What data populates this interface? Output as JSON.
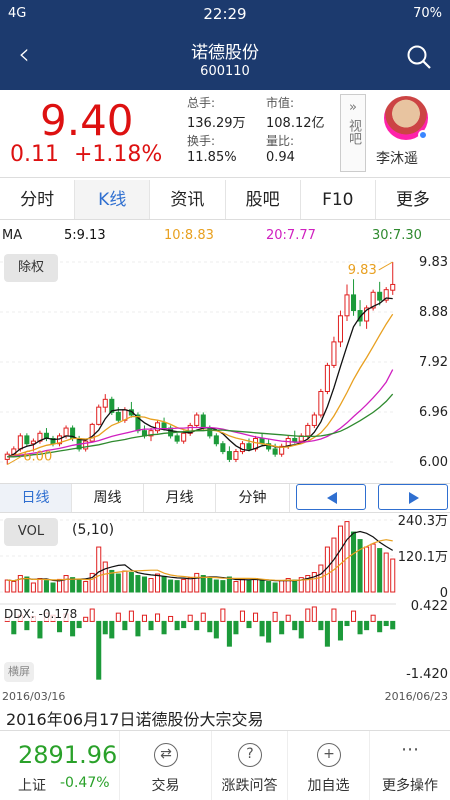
{
  "status": {
    "left": "4G",
    "time": "22:29",
    "right": "70%"
  },
  "nav": {
    "title": "诺德股份",
    "code": "600110"
  },
  "quote": {
    "price": "9.40",
    "change_abs": "0.11",
    "change_pct": "+1.18%",
    "stats": [
      {
        "label": "总手:",
        "value": "136.29万"
      },
      {
        "label": "市值:",
        "value": "108.12亿"
      },
      {
        "label": "换手:",
        "value": "11.85%"
      },
      {
        "label": "量比:",
        "value": "0.94"
      }
    ],
    "view_label": "视吧",
    "user": "李沐遥"
  },
  "tabs": [
    "分时",
    "K线",
    "资讯",
    "股吧",
    "F10",
    "更多"
  ],
  "ma": {
    "label": "MA",
    "ma5": "5:9.13",
    "ma10": "10:8.83",
    "ma20": "20:7.77",
    "ma30": "30:7.30"
  },
  "chart_controls": {
    "fuquan": "除权",
    "vol": "VOL",
    "vol_param": "(5,10)",
    "ddx": "DDX: -0.178",
    "hengping": "横屏"
  },
  "periods": [
    "日线",
    "周线",
    "月线",
    "分钟"
  ],
  "colors": {
    "up": "#e02020",
    "down": "#1c9a3a",
    "ma5": "#111111",
    "ma10": "#e8a020",
    "ma20": "#d020c0",
    "ma30": "#2f8a2f",
    "nav": "#1c3a6e"
  },
  "chart_data": [
    {
      "type": "candlestick",
      "title": "",
      "ylim": [
        6.0,
        9.83
      ],
      "yticks": [
        "9.83",
        "8.88",
        "7.92",
        "6.96",
        "6.00"
      ],
      "annotations": {
        "high": "9.83",
        "low": "6.00"
      },
      "x_start": "2016/03/16",
      "x_end": "2016/06/23",
      "candles": [
        [
          6.05,
          6.2,
          5.95,
          6.15
        ],
        [
          6.15,
          6.3,
          6.1,
          6.25
        ],
        [
          6.25,
          6.55,
          6.2,
          6.5
        ],
        [
          6.5,
          6.55,
          6.3,
          6.35
        ],
        [
          6.35,
          6.45,
          6.2,
          6.4
        ],
        [
          6.4,
          6.6,
          6.35,
          6.55
        ],
        [
          6.55,
          6.65,
          6.4,
          6.45
        ],
        [
          6.45,
          6.5,
          6.3,
          6.35
        ],
        [
          6.35,
          6.55,
          6.3,
          6.5
        ],
        [
          6.5,
          6.7,
          6.45,
          6.65
        ],
        [
          6.65,
          6.7,
          6.4,
          6.45
        ],
        [
          6.45,
          6.5,
          6.2,
          6.25
        ],
        [
          6.25,
          6.45,
          6.2,
          6.4
        ],
        [
          6.4,
          6.75,
          6.38,
          6.72
        ],
        [
          6.72,
          7.1,
          6.7,
          7.05
        ],
        [
          7.05,
          7.3,
          6.95,
          7.2
        ],
        [
          7.2,
          7.25,
          6.9,
          6.95
        ],
        [
          6.95,
          7.05,
          6.75,
          6.8
        ],
        [
          6.8,
          7.05,
          6.75,
          7.0
        ],
        [
          7.0,
          7.15,
          6.85,
          6.9
        ],
        [
          6.9,
          6.95,
          6.55,
          6.6
        ],
        [
          6.6,
          6.7,
          6.45,
          6.5
        ],
        [
          6.5,
          6.65,
          6.4,
          6.6
        ],
        [
          6.6,
          6.8,
          6.55,
          6.75
        ],
        [
          6.75,
          6.85,
          6.6,
          6.65
        ],
        [
          6.65,
          6.7,
          6.45,
          6.5
        ],
        [
          6.5,
          6.55,
          6.35,
          6.4
        ],
        [
          6.4,
          6.6,
          6.35,
          6.55
        ],
        [
          6.55,
          6.75,
          6.5,
          6.7
        ],
        [
          6.7,
          6.95,
          6.65,
          6.9
        ],
        [
          6.9,
          6.95,
          6.6,
          6.65
        ],
        [
          6.65,
          6.7,
          6.45,
          6.5
        ],
        [
          6.5,
          6.55,
          6.3,
          6.35
        ],
        [
          6.35,
          6.4,
          6.15,
          6.2
        ],
        [
          6.2,
          6.3,
          6.0,
          6.05
        ],
        [
          6.05,
          6.25,
          6.0,
          6.2
        ],
        [
          6.2,
          6.4,
          6.15,
          6.35
        ],
        [
          6.35,
          6.45,
          6.2,
          6.25
        ],
        [
          6.25,
          6.5,
          6.2,
          6.45
        ],
        [
          6.45,
          6.55,
          6.3,
          6.35
        ],
        [
          6.35,
          6.45,
          6.2,
          6.25
        ],
        [
          6.25,
          6.35,
          6.1,
          6.15
        ],
        [
          6.15,
          6.35,
          6.1,
          6.3
        ],
        [
          6.3,
          6.5,
          6.25,
          6.45
        ],
        [
          6.45,
          6.6,
          6.35,
          6.4
        ],
        [
          6.4,
          6.55,
          6.35,
          6.5
        ],
        [
          6.5,
          6.75,
          6.45,
          6.7
        ],
        [
          6.7,
          6.95,
          6.65,
          6.9
        ],
        [
          6.9,
          7.4,
          6.85,
          7.35
        ],
        [
          7.35,
          7.9,
          7.3,
          7.85
        ],
        [
          7.85,
          8.4,
          7.8,
          8.3
        ],
        [
          8.3,
          8.9,
          8.2,
          8.8
        ],
        [
          8.8,
          9.4,
          8.7,
          9.2
        ],
        [
          9.2,
          9.5,
          8.8,
          8.9
        ],
        [
          8.9,
          9.1,
          8.6,
          8.7
        ],
        [
          8.7,
          9.0,
          8.55,
          8.95
        ],
        [
          8.95,
          9.3,
          8.9,
          9.25
        ],
        [
          9.25,
          9.45,
          9.0,
          9.1
        ],
        [
          9.1,
          9.35,
          9.05,
          9.3
        ],
        [
          9.29,
          9.83,
          9.2,
          9.4
        ]
      ],
      "ma5": [
        6.1,
        6.15,
        6.25,
        6.3,
        6.33,
        6.41,
        6.46,
        6.43,
        6.44,
        6.5,
        6.49,
        6.43,
        6.42,
        6.49,
        6.61,
        6.83,
        6.98,
        7.0,
        7.0,
        6.97,
        6.85,
        6.75,
        6.68,
        6.64,
        6.62,
        6.6,
        6.58,
        6.57,
        6.56,
        6.61,
        6.65,
        6.66,
        6.62,
        6.54,
        6.42,
        6.31,
        6.24,
        6.22,
        6.26,
        6.31,
        6.33,
        6.29,
        6.28,
        6.31,
        6.33,
        6.37,
        6.44,
        6.57,
        6.77,
        7.06,
        7.42,
        7.83,
        8.22,
        8.59,
        8.78,
        8.91,
        8.98,
        9.04,
        9.14,
        9.13
      ],
      "ma10": [
        6.1,
        6.12,
        6.16,
        6.2,
        6.23,
        6.28,
        6.32,
        6.34,
        6.37,
        6.41,
        6.45,
        6.45,
        6.44,
        6.46,
        6.51,
        6.61,
        6.7,
        6.75,
        6.81,
        6.87,
        6.87,
        6.86,
        6.82,
        6.8,
        6.77,
        6.72,
        6.66,
        6.62,
        6.59,
        6.6,
        6.61,
        6.61,
        6.6,
        6.56,
        6.5,
        6.46,
        6.43,
        6.4,
        6.37,
        6.35,
        6.33,
        6.3,
        6.28,
        6.29,
        6.32,
        6.35,
        6.4,
        6.47,
        6.56,
        6.7,
        6.88,
        7.1,
        7.33,
        7.58,
        7.8,
        8.0,
        8.21,
        8.43,
        8.64,
        8.83
      ],
      "ma20": [
        6.1,
        6.11,
        6.13,
        6.15,
        6.17,
        6.19,
        6.22,
        6.24,
        6.26,
        6.29,
        6.32,
        6.34,
        6.36,
        6.38,
        6.41,
        6.45,
        6.49,
        6.52,
        6.55,
        6.58,
        6.61,
        6.63,
        6.63,
        6.64,
        6.64,
        6.64,
        6.65,
        6.65,
        6.66,
        6.66,
        6.66,
        6.66,
        6.65,
        6.63,
        6.6,
        6.57,
        6.54,
        6.51,
        6.48,
        6.46,
        6.44,
        6.42,
        6.4,
        6.39,
        6.38,
        6.38,
        6.39,
        6.41,
        6.44,
        6.49,
        6.56,
        6.65,
        6.75,
        6.87,
        6.98,
        7.1,
        7.23,
        7.37,
        7.53,
        7.77
      ],
      "ma30": [
        6.1,
        6.1,
        6.11,
        6.12,
        6.14,
        6.15,
        6.17,
        6.19,
        6.21,
        6.23,
        6.25,
        6.27,
        6.29,
        6.31,
        6.33,
        6.36,
        6.39,
        6.41,
        6.43,
        6.46,
        6.48,
        6.5,
        6.52,
        6.53,
        6.55,
        6.56,
        6.57,
        6.58,
        6.59,
        6.6,
        6.6,
        6.61,
        6.61,
        6.61,
        6.6,
        6.59,
        6.58,
        6.57,
        6.56,
        6.55,
        6.54,
        6.53,
        6.52,
        6.51,
        6.5,
        6.49,
        6.49,
        6.49,
        6.5,
        6.52,
        6.55,
        6.59,
        6.65,
        6.72,
        6.79,
        6.87,
        6.95,
        7.05,
        7.16,
        7.3
      ]
    },
    {
      "type": "bar",
      "title": "VOL",
      "ylim": [
        0,
        240.3
      ],
      "yticks": [
        "240.3万",
        "120.1万",
        "0"
      ],
      "values": [
        40,
        35,
        55,
        50,
        30,
        45,
        38,
        30,
        42,
        55,
        48,
        40,
        35,
        62,
        150,
        100,
        72,
        60,
        70,
        65,
        55,
        50,
        45,
        60,
        52,
        40,
        38,
        42,
        48,
        62,
        55,
        45,
        40,
        38,
        50,
        35,
        42,
        38,
        45,
        40,
        35,
        30,
        38,
        45,
        40,
        48,
        55,
        65,
        90,
        150,
        180,
        220,
        235,
        200,
        175,
        150,
        160,
        145,
        130,
        110
      ]
    },
    {
      "type": "bar",
      "title": "DDX",
      "ylim": [
        -1.42,
        0.422
      ],
      "yticks": [
        "0.422",
        "-1.420"
      ],
      "values": [
        0.1,
        -0.3,
        0.15,
        -0.2,
        0.12,
        -0.4,
        0.2,
        0.15,
        -0.25,
        0.18,
        -0.35,
        -0.15,
        0.1,
        0.3,
        -1.4,
        -0.3,
        -0.4,
        0.2,
        -0.2,
        0.25,
        -0.35,
        0.15,
        -0.2,
        0.18,
        -0.3,
        0.12,
        -0.2,
        -0.15,
        0.15,
        -0.2,
        0.2,
        -0.25,
        -0.4,
        0.3,
        -0.6,
        -0.3,
        0.25,
        -0.15,
        0.2,
        -0.35,
        -0.5,
        0.22,
        -0.3,
        0.15,
        -0.2,
        -0.4,
        0.3,
        0.35,
        -0.2,
        -0.6,
        0.3,
        -0.45,
        -0.1,
        0.25,
        -0.3,
        -0.2,
        0.15,
        -0.25,
        -0.1,
        -0.18
      ]
    }
  ],
  "news": "2016年06月17日诺德股份大宗交易",
  "bottom": {
    "index_value": "2891.96",
    "index_name": "上证",
    "index_change": "-0.47%",
    "actions": [
      {
        "icon": "exchange-icon",
        "label": "交易"
      },
      {
        "icon": "question-icon",
        "label": "涨跌问答"
      },
      {
        "icon": "plus-icon",
        "label": "加自选"
      },
      {
        "icon": "more-icon",
        "label": "更多操作"
      }
    ]
  }
}
